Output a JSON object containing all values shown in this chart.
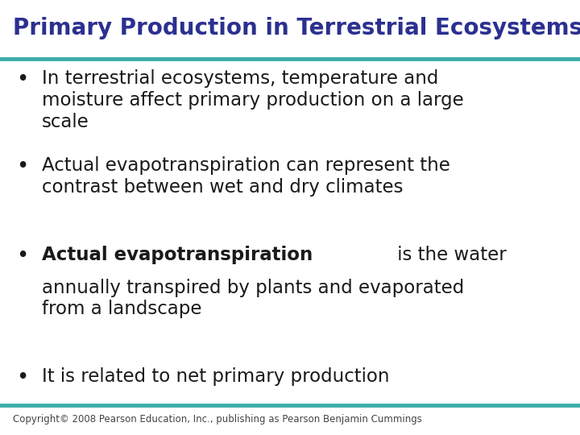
{
  "title": "Primary Production in Terrestrial Ecosystems",
  "title_color": "#2B3090",
  "title_fontsize": 20,
  "title_fontweight": "bold",
  "line_color": "#3AADA8",
  "line_width": 3.5,
  "background_color": "#FFFFFF",
  "bullet_color": "#1A1A1A",
  "bullet_fontsize": 16.5,
  "bullets": [
    {
      "normal": "In terrestrial ecosystems, temperature and\nmoisture affect primary production on a large\nscale",
      "bold_prefix": null
    },
    {
      "normal": "Actual evapotranspiration can represent the\ncontrast between wet and dry climates",
      "bold_prefix": null
    },
    {
      "normal": " is the water\nannually transpired by plants and evaporated\nfrom a landscape",
      "bold_prefix": "Actual evapotranspiration"
    },
    {
      "normal": "It is related to net primary production",
      "bold_prefix": null
    }
  ],
  "copyright_text": "Copyright© 2008 Pearson Education, Inc., publishing as Pearson Benjamin Cummings",
  "copyright_fontsize": 8.5,
  "copyright_color": "#444444"
}
